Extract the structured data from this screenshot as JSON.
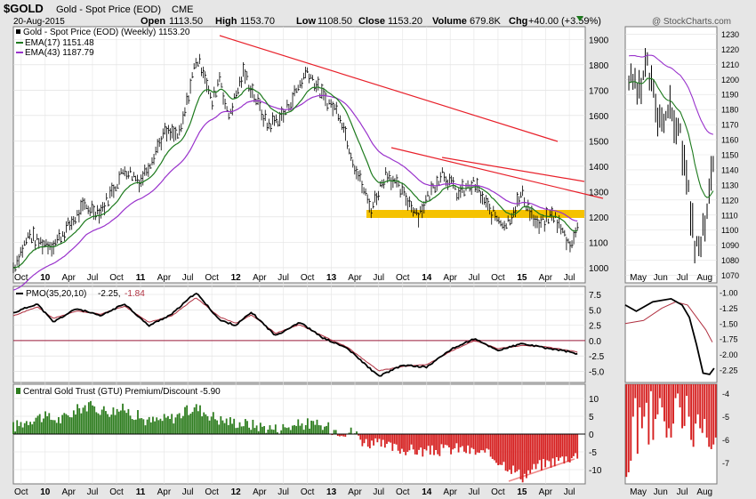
{
  "header": {
    "symbol": "$GOLD",
    "name": "Gold - Spot Price (EOD)",
    "exchange": "CME",
    "date": "20-Aug-2015",
    "open_label": "Open",
    "open": "1113.50",
    "high_label": "High",
    "high": "1153.70",
    "low_label": "Low",
    "low": "1108.50",
    "close_label": "Close",
    "close": "1153.20",
    "volume_label": "Volume",
    "volume": "679.8K",
    "chg_label": "Chg",
    "chg": "+40.00 (+3.59%)",
    "watermark": "@ StockCharts.com"
  },
  "legend": {
    "price": "Gold - Spot Price (EOD) (Weekly) 1153.20",
    "ema17": "EMA(17) 1151.48",
    "ema43": "EMA(43) 1187.79",
    "pmo_label": "PMO(35,20,10)",
    "pmo_value": "-2.25,",
    "pmo_signal": "-1.84",
    "premium": "Central Gold Trust (GTU) Premium/Discount -5.90"
  },
  "colors": {
    "price_bar": "#000000",
    "ema17": "#1d7a1d",
    "ema43": "#9932cc",
    "trendline": "#e8202a",
    "support_band": "#f5c200",
    "premium_positive": "#2e7d1f",
    "discount_negative": "#d62020",
    "pmo_signal": "#b03040",
    "zero_line": "#9a1a3a"
  },
  "axes": {
    "x_main": [
      "Oct",
      "10",
      "Apr",
      "Jul",
      "Oct",
      "11",
      "Apr",
      "Jul",
      "Oct",
      "12",
      "Apr",
      "Jul",
      "Oct",
      "13",
      "Apr",
      "Jul",
      "Oct",
      "14",
      "Apr",
      "Jul",
      "Oct",
      "15",
      "Apr",
      "Jul"
    ],
    "x_main_bold": [
      "10",
      "11",
      "12",
      "13",
      "14",
      "15"
    ],
    "x_side": [
      "May",
      "Jun",
      "Jul",
      "Aug"
    ],
    "price_ticks": [
      "1900",
      "1800",
      "1700",
      "1600",
      "1500",
      "1400",
      "1300",
      "1200",
      "1100",
      "1000"
    ],
    "side_price_ticks": [
      "1230",
      "1220",
      "1210",
      "1200",
      "1190",
      "1180",
      "1170",
      "1160",
      "1150",
      "1140",
      "1130",
      "1120",
      "1110",
      "1100",
      "1090",
      "1080",
      "1070"
    ],
    "pmo_ticks": [
      "7.5",
      "5.0",
      "2.5",
      "0.0",
      "-2.5",
      "-5.0"
    ],
    "side_pmo_ticks": [
      "-1.00",
      "-1.25",
      "-1.50",
      "-1.75",
      "-2.00",
      "-2.25"
    ],
    "prem_ticks": [
      "10",
      "5",
      "0",
      "-5",
      "-10"
    ],
    "side_prem_ticks": [
      "-4",
      "-5",
      "-6",
      "-7"
    ]
  },
  "chart_data": [
    {
      "type": "bar",
      "panel": "price-weekly",
      "x_range": [
        "2009-09",
        "2015-08"
      ],
      "ylim": [
        940,
        1950
      ],
      "anchors": [
        [
          "2009-09",
          1000
        ],
        [
          "2009-11",
          1130
        ],
        [
          "2009-12",
          1100
        ],
        [
          "2010-02",
          1090
        ],
        [
          "2010-06",
          1240
        ],
        [
          "2010-08",
          1220
        ],
        [
          "2010-11",
          1390
        ],
        [
          "2011-01",
          1340
        ],
        [
          "2011-04",
          1530
        ],
        [
          "2011-06",
          1520
        ],
        [
          "2011-08",
          1820
        ],
        [
          "2011-09",
          1780
        ],
        [
          "2011-10",
          1640
        ],
        [
          "2011-11",
          1760
        ],
        [
          "2011-12",
          1590
        ],
        [
          "2012-02",
          1770
        ],
        [
          "2012-05",
          1560
        ],
        [
          "2012-07",
          1600
        ],
        [
          "2012-10",
          1780
        ],
        [
          "2012-12",
          1670
        ],
        [
          "2013-02",
          1610
        ],
        [
          "2013-04",
          1400
        ],
        [
          "2013-06",
          1230
        ],
        [
          "2013-08",
          1380
        ],
        [
          "2013-09",
          1330
        ],
        [
          "2013-12",
          1210
        ],
        [
          "2014-03",
          1380
        ],
        [
          "2014-05",
          1290
        ],
        [
          "2014-07",
          1330
        ],
        [
          "2014-09",
          1220
        ],
        [
          "2014-11",
          1170
        ],
        [
          "2015-01",
          1290
        ],
        [
          "2015-03",
          1160
        ],
        [
          "2015-05",
          1210
        ],
        [
          "2015-07",
          1090
        ],
        [
          "2015-08",
          1150
        ]
      ]
    },
    {
      "type": "line",
      "panel": "price-daily-inset",
      "x_range": [
        "2015-04",
        "2015-08"
      ],
      "ylim": [
        1065,
        1235
      ],
      "anchors": [
        [
          "2015-04-25",
          1200
        ],
        [
          "2015-05-10",
          1190
        ],
        [
          "2015-05-20",
          1210
        ],
        [
          "2015-06-05",
          1175
        ],
        [
          "2015-06-20",
          1180
        ],
        [
          "2015-07-05",
          1165
        ],
        [
          "2015-07-15",
          1130
        ],
        [
          "2015-07-25",
          1090
        ],
        [
          "2015-08-10",
          1100
        ],
        [
          "2015-08-20",
          1150
        ]
      ]
    },
    {
      "type": "line",
      "panel": "pmo",
      "ylim": [
        -6.8,
        8.8
      ],
      "series": [
        {
          "name": "PMO(35,20,10)",
          "anchors": [
            [
              "2009-09",
              4.5
            ],
            [
              "2009-12",
              6.0
            ],
            [
              "2010-02",
              3.0
            ],
            [
              "2010-05",
              5.2
            ],
            [
              "2010-08",
              4.0
            ],
            [
              "2010-11",
              6.0
            ],
            [
              "2011-02",
              2.4
            ],
            [
              "2011-05",
              4.3
            ],
            [
              "2011-08",
              7.8
            ],
            [
              "2011-11",
              3.3
            ],
            [
              "2012-01",
              2.5
            ],
            [
              "2012-03",
              4.6
            ],
            [
              "2012-06",
              0.8
            ],
            [
              "2012-09",
              3.0
            ],
            [
              "2012-12",
              0.4
            ],
            [
              "2013-03",
              -1.2
            ],
            [
              "2013-07",
              -5.8
            ],
            [
              "2013-10",
              -4.0
            ],
            [
              "2014-01",
              -4.3
            ],
            [
              "2014-04",
              -1.5
            ],
            [
              "2014-07",
              0.3
            ],
            [
              "2014-10",
              -1.6
            ],
            [
              "2015-01",
              -0.5
            ],
            [
              "2015-04",
              -1.2
            ],
            [
              "2015-07",
              -1.8
            ],
            [
              "2015-08",
              -2.25
            ]
          ]
        },
        {
          "name": "Signal",
          "anchors": [
            [
              "2009-09",
              4.0
            ],
            [
              "2009-12",
              5.5
            ],
            [
              "2010-02",
              3.6
            ],
            [
              "2010-05",
              4.8
            ],
            [
              "2010-08",
              4.3
            ],
            [
              "2010-11",
              5.6
            ],
            [
              "2011-02",
              3.0
            ],
            [
              "2011-05",
              4.0
            ],
            [
              "2011-08",
              7.0
            ],
            [
              "2011-11",
              3.8
            ],
            [
              "2012-01",
              2.8
            ],
            [
              "2012-03",
              4.2
            ],
            [
              "2012-06",
              1.2
            ],
            [
              "2012-09",
              2.6
            ],
            [
              "2012-12",
              0.7
            ],
            [
              "2013-03",
              -1.0
            ],
            [
              "2013-07",
              -4.9
            ],
            [
              "2013-10",
              -4.2
            ],
            [
              "2014-01",
              -3.9
            ],
            [
              "2014-04",
              -1.8
            ],
            [
              "2014-07",
              0.0
            ],
            [
              "2014-10",
              -1.3
            ],
            [
              "2015-01",
              -0.8
            ],
            [
              "2015-04",
              -1.0
            ],
            [
              "2015-07",
              -1.6
            ],
            [
              "2015-08",
              -1.84
            ]
          ]
        }
      ]
    },
    {
      "type": "bar",
      "panel": "gtu-premium-discount",
      "ylim": [
        -14,
        14
      ],
      "anchors": [
        [
          "2009-09",
          2.0
        ],
        [
          "2009-12",
          5.0
        ],
        [
          "2010-03",
          4.0
        ],
        [
          "2010-06",
          8.0
        ],
        [
          "2010-09",
          6.5
        ],
        [
          "2010-11",
          7.0
        ],
        [
          "2011-02",
          3.5
        ],
        [
          "2011-05",
          4.5
        ],
        [
          "2011-08",
          7.5
        ],
        [
          "2011-11",
          4.0
        ],
        [
          "2012-02",
          3.0
        ],
        [
          "2012-06",
          1.5
        ],
        [
          "2012-10",
          3.0
        ],
        [
          "2013-02",
          1.0
        ],
        [
          "2013-04",
          0.5
        ],
        [
          "2013-05",
          -2.0
        ],
        [
          "2013-09",
          -4.0
        ],
        [
          "2014-01",
          -5.0
        ],
        [
          "2014-05",
          -4.0
        ],
        [
          "2014-09",
          -6.0
        ],
        [
          "2014-12",
          -10.0
        ],
        [
          "2015-01",
          -12.0
        ],
        [
          "2015-03",
          -9.0
        ],
        [
          "2015-06",
          -7.0
        ],
        [
          "2015-08",
          -6.0
        ]
      ]
    },
    {
      "type": "bar",
      "panel": "gtu-premium-discount-inset",
      "ylim": [
        -7.9,
        -3.6
      ],
      "values": [
        -7.6,
        -7.4,
        -6.9,
        -5.0,
        -4.2,
        -6.6,
        -4.6,
        -5.5,
        -5.0,
        -4.4,
        -6.2,
        -3.9,
        -6.0,
        -5.1,
        -4.9,
        -4.2,
        -4.6,
        -5.2,
        -5.9,
        -5.5,
        -5.9,
        -5.3,
        -4.2,
        -4.0,
        -4.6,
        -5.5,
        -5.4,
        -4.1,
        -5.0,
        -6.0,
        -6.3,
        -5.3,
        -4.9,
        -5.5,
        -5.7,
        -5.1,
        -5.9,
        -6.3,
        -6.4,
        -6.2,
        -5.9
      ]
    }
  ]
}
